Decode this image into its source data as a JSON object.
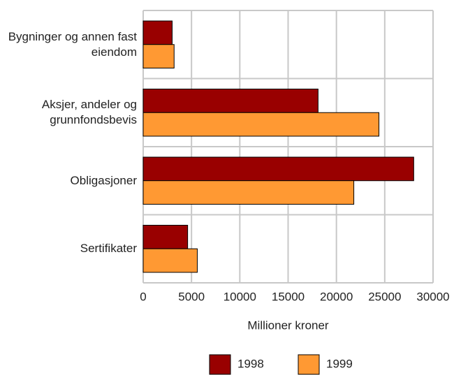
{
  "chart_data": {
    "type": "bar",
    "orientation": "horizontal",
    "categories": [
      "Bygninger og annen fast eiendom",
      "Aksjer, andeler og grunnfondsbevis",
      "Obligasjoner",
      "Sertifikater"
    ],
    "series": [
      {
        "name": "1998",
        "color": "#990000",
        "values": [
          3000,
          18100,
          28000,
          4600
        ]
      },
      {
        "name": "1999",
        "color": "#ff9933",
        "values": [
          3200,
          24400,
          21800,
          5600
        ]
      }
    ],
    "xlabel": "Millioner kroner",
    "xlim": [
      0,
      30000
    ],
    "xticks": [
      0,
      5000,
      10000,
      15000,
      20000,
      25000,
      30000
    ],
    "grid": true
  }
}
